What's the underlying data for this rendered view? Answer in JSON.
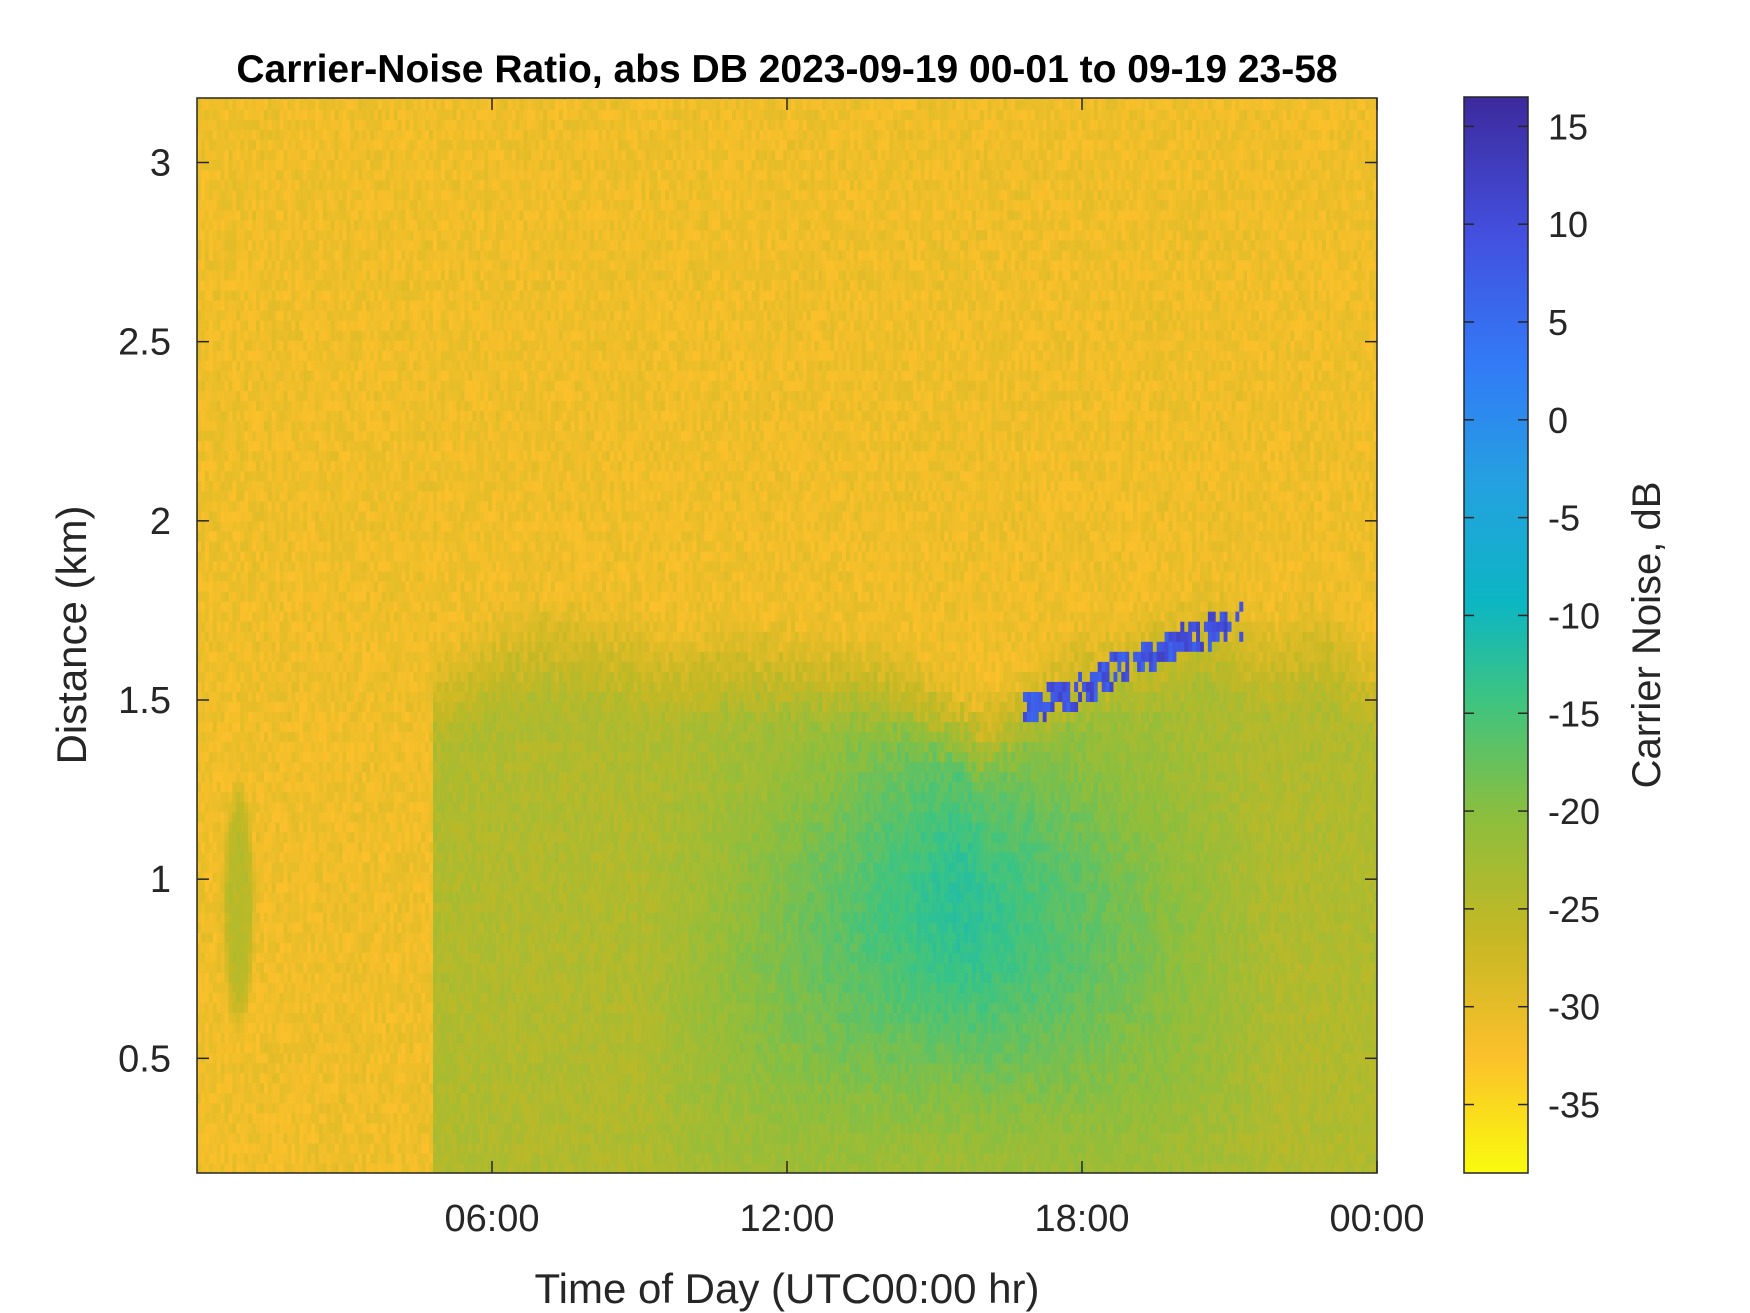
{
  "chart_data": {
    "type": "heatmap",
    "title": "Carrier-Noise Ratio, abs DB 2023-09-19 00-01 to 09-19 23-58",
    "xlabel": "Time of Day (UTC00:00 hr)",
    "ylabel": "Distance (km)",
    "colorbar_label": "Carrier Noise, dB",
    "x_ticks": [
      6,
      12,
      18,
      24
    ],
    "x_tick_labels": [
      "06:00",
      "12:00",
      "18:00",
      "00:00"
    ],
    "xlim": [
      0,
      24
    ],
    "y_ticks": [
      0.5,
      1,
      1.5,
      2,
      2.5,
      3
    ],
    "y_tick_labels": [
      "0.5",
      "1",
      "1.5",
      "2",
      "2.5",
      "3"
    ],
    "ylim": [
      0.18,
      3.18
    ],
    "c_ticks": [
      -35,
      -30,
      -25,
      -20,
      -15,
      -10,
      -5,
      0,
      5,
      10,
      15
    ],
    "c_tick_labels": [
      "-35",
      "-30",
      "-25",
      "-20",
      "-15",
      "-10",
      "-5",
      "0",
      "5",
      "10",
      "15"
    ],
    "clim": [
      -38.5,
      16.5
    ],
    "background_level_db": -31,
    "colormap": [
      "#f9fb0e",
      "#fbc02b",
      "#c5b824",
      "#8dbe3d",
      "#3dc481",
      "#0cb6c3",
      "#24a1e0",
      "#327bf7",
      "#4350e0",
      "#3d2a9c"
    ],
    "features": [
      {
        "label": "weak early-morning signal",
        "time_range": [
          0.5,
          1.2
        ],
        "distance_range": [
          0.55,
          1.3
        ],
        "level_db": -25
      },
      {
        "label": "daytime boundary layer",
        "time_range": [
          4.8,
          24
        ],
        "distance_top_series": {
          "x": [
            4.8,
            5.5,
            6,
            7,
            8,
            9,
            10,
            11,
            12,
            13,
            14,
            15,
            15.5,
            16,
            16.8,
            17.5,
            18,
            18.5,
            19,
            19.5,
            20,
            20.5,
            21,
            21.3,
            21.8,
            22.5,
            23,
            23.5,
            24
          ],
          "y": [
            1.65,
            1.7,
            1.75,
            1.8,
            1.78,
            1.75,
            1.72,
            1.75,
            1.72,
            1.7,
            1.68,
            1.6,
            1.55,
            1.52,
            1.6,
            1.65,
            1.7,
            1.72,
            1.75,
            1.78,
            1.8,
            1.85,
            1.82,
            1.78,
            1.75,
            1.78,
            1.8,
            1.72,
            1.65
          ]
        }
      },
      {
        "label": "strong-return band at layer top",
        "time_range": [
          16.8,
          21.3
        ],
        "distance_series": {
          "x": [
            16.8,
            17.3,
            17.8,
            18.3,
            18.8,
            19.3,
            19.8,
            20.3,
            20.8,
            21.2
          ],
          "y": [
            1.48,
            1.5,
            1.52,
            1.55,
            1.6,
            1.62,
            1.65,
            1.68,
            1.7,
            1.72
          ]
        },
        "level_db": 13
      }
    ]
  }
}
